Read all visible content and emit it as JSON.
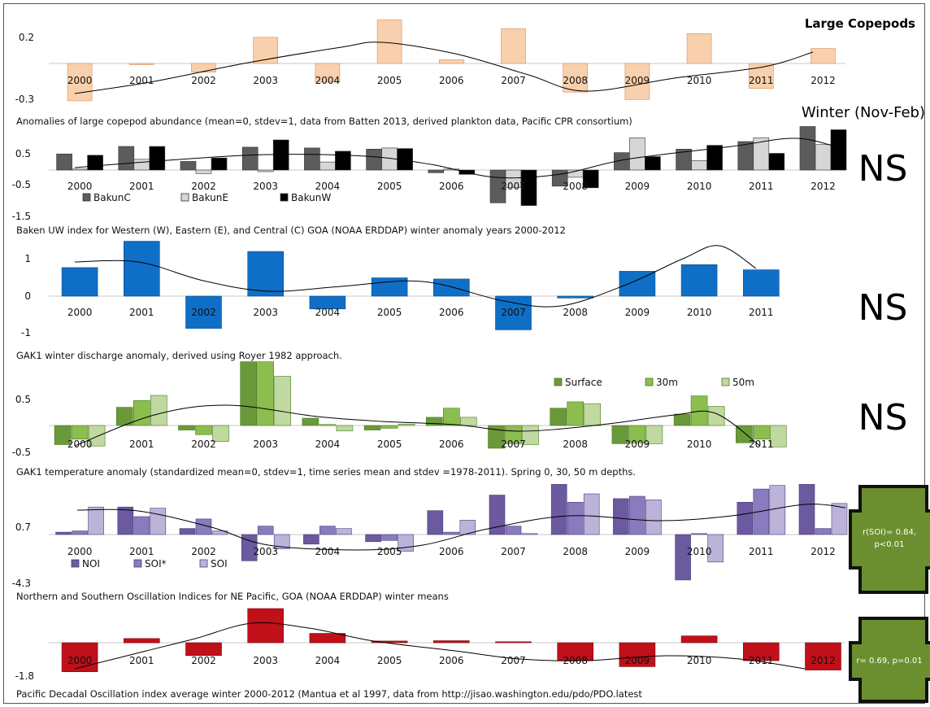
{
  "page": {
    "header_title": "Large Copepods",
    "season_label": "Winter (Nov-Feb)"
  },
  "panels": [
    {
      "id": "copepods",
      "caption": "Anomalies of large copepod abundance (mean=0, stdev=1, data from Batten 2013, derived plankton data, Pacific CPR consortium)",
      "ns": ""
    },
    {
      "id": "bakun",
      "caption": "Baken UW index for Western (W), Eastern (E), and Central (C) GOA (NOAA ERDDAP) winter anomaly years 2000-2012",
      "ns": "NS"
    },
    {
      "id": "discharge",
      "caption": "GAK1 winter discharge anomaly, derived using Royer 1982 approach.",
      "ns": "NS"
    },
    {
      "id": "temperature",
      "caption": "GAK1 temperature anomaly (standardized mean=0, stdev=1, time series mean and stdev =1978-2011).   Spring 0, 30, 50 m depths.",
      "ns": "NS"
    },
    {
      "id": "oscillation",
      "caption": "Northern and Southern Oscillation Indices for NE Pacific, GOA (NOAA ERDDAP) winter means",
      "ns": "",
      "stat": [
        "r(SOI)= 0.84,",
        "p<0.01"
      ]
    },
    {
      "id": "pdo",
      "caption": "Pacific Decadal Oscillation index average  winter 2000-2012 (Mantua et al 1997, data from http://jisao.washington.edu/pdo/PDO.latest",
      "ns": "",
      "stat": [
        "r= 0.69, p=0.01"
      ]
    }
  ],
  "colors": {
    "copepod_fill": "#f9d0ad",
    "copepod_stroke": "#d98c5a",
    "bakun_c": "#5c5c5c",
    "bakun_e": "#d6d6d6",
    "bakun_w": "#000000",
    "discharge": "#0f6fc6",
    "temp_surface": "#6a993a",
    "temp_30m": "#8cbd4f",
    "temp_50m": "#bfd9a0",
    "noi": "#6b5aa0",
    "soi_star": "#8a7bbf",
    "soi": "#bcb3d9",
    "pdo": "#c0101a",
    "stat_fill": "#6b8e2f",
    "curve": "#000000"
  },
  "chart_data": [
    {
      "type": "bar",
      "title": "Large Copepods",
      "categories": [
        "2000",
        "2001",
        "2002",
        "2003",
        "2004",
        "2005",
        "2006",
        "2007",
        "2008",
        "2009",
        "2010",
        "2011",
        "2012"
      ],
      "series": [
        {
          "values": [
            -0.3,
            -0.01,
            -0.07,
            0.21,
            -0.15,
            0.35,
            0.03,
            0.28,
            -0.23,
            -0.29,
            0.24,
            -0.2,
            0.12
          ]
        }
      ],
      "y_ticks": [
        0.2,
        -0.3
      ],
      "ylim": [
        -0.3,
        0.35
      ],
      "trend_curve": true,
      "significance": ""
    },
    {
      "type": "bar",
      "title": "Winter (Nov-Feb)",
      "categories": [
        "2000",
        "2001",
        "2002",
        "2003",
        "2004",
        "2005",
        "2006",
        "2007",
        "2008",
        "2009",
        "2010",
        "2011",
        "2012"
      ],
      "series": [
        {
          "name": "BakunC",
          "values": [
            0.6,
            0.88,
            0.32,
            0.85,
            0.82,
            0.78,
            -0.1,
            -1.22,
            -0.6,
            0.65,
            0.78,
            1.06,
            1.62
          ]
        },
        {
          "name": "BakunE",
          "values": [
            0.0,
            0.4,
            -0.13,
            -0.06,
            0.3,
            0.82,
            0.0,
            -0.65,
            -0.27,
            1.2,
            0.35,
            1.2,
            0.95
          ]
        },
        {
          "name": "BakunW",
          "values": [
            0.55,
            0.88,
            0.45,
            1.12,
            0.7,
            0.8,
            -0.16,
            -1.32,
            -0.66,
            0.5,
            0.92,
            0.62,
            1.5
          ]
        }
      ],
      "y_ticks": [
        0.5,
        -0.5,
        -1.5
      ],
      "ylim": [
        -1.5,
        1.6
      ],
      "trend_curve": true,
      "significance": "NS"
    },
    {
      "type": "bar",
      "categories": [
        "2000",
        "2001",
        "2002",
        "2003",
        "2004",
        "2005",
        "2006",
        "2007",
        "2008",
        "2009",
        "2010",
        "2011"
      ],
      "series": [
        {
          "values": [
            0.78,
            1.5,
            -0.88,
            1.22,
            -0.35,
            0.5,
            0.47,
            -0.92,
            -0.05,
            0.68,
            0.86,
            0.72
          ]
        }
      ],
      "y_ticks": [
        1,
        0,
        -1
      ],
      "ylim": [
        -1,
        1.5
      ],
      "trend_curve": true,
      "significance": "NS"
    },
    {
      "type": "bar",
      "categories": [
        "2000",
        "2001",
        "2002",
        "2003",
        "2004",
        "2005",
        "2006",
        "2007",
        "2008",
        "2009",
        "2010",
        "2011"
      ],
      "series": [
        {
          "name": "Surface",
          "values": [
            -0.42,
            0.4,
            -0.1,
            1.4,
            0.16,
            -0.1,
            0.18,
            -0.5,
            0.38,
            -0.4,
            0.25,
            -0.38
          ]
        },
        {
          "name": "30m",
          "values": [
            -0.3,
            0.55,
            -0.2,
            1.4,
            0.0,
            -0.06,
            0.38,
            -0.4,
            0.52,
            -0.38,
            0.65,
            -0.3
          ]
        },
        {
          "name": "50m",
          "values": [
            -0.45,
            0.66,
            -0.35,
            1.08,
            -0.12,
            0.03,
            0.18,
            -0.42,
            0.48,
            -0.4,
            0.42,
            -0.47
          ]
        }
      ],
      "y_ticks": [
        0.5,
        -0.5
      ],
      "ylim": [
        -0.5,
        1.4
      ],
      "legend": "top-right",
      "trend_curve": true,
      "significance": "NS"
    },
    {
      "type": "bar",
      "categories": [
        "2000",
        "2001",
        "2002",
        "2003",
        "2004",
        "2005",
        "2006",
        "2007",
        "2008",
        "2009",
        "2010",
        "2011",
        "2012"
      ],
      "series": [
        {
          "name": "NOI",
          "values": [
            0.2,
            2.3,
            0.5,
            -2.2,
            -0.8,
            -0.6,
            2.0,
            3.3,
            4.2,
            3.0,
            -3.8,
            2.7,
            4.2
          ]
        },
        {
          "name": "SOI*",
          "values": [
            0.3,
            1.5,
            1.3,
            0.7,
            0.7,
            -0.5,
            0.2,
            0.7,
            2.7,
            3.2,
            0.0,
            3.8,
            0.5
          ]
        },
        {
          "name": "SOI",
          "values": [
            2.3,
            2.2,
            0.3,
            -1.2,
            0.5,
            -1.4,
            1.2,
            0.0,
            3.4,
            2.9,
            -2.3,
            4.1,
            2.6
          ]
        }
      ],
      "y_ticks": [
        0.7,
        -4.3
      ],
      "ylim": [
        -4.3,
        4.5
      ],
      "legend": "bottom-left",
      "trend_curve": true,
      "significance": ""
    },
    {
      "type": "bar",
      "categories": [
        "2000",
        "2001",
        "2002",
        "2003",
        "2004",
        "2005",
        "2006",
        "2007",
        "2008",
        "2009",
        "2010",
        "2011",
        "2012"
      ],
      "series": [
        {
          "values": [
            -1.7,
            0.25,
            -0.75,
            2.0,
            0.55,
            0.1,
            0.12,
            0.0,
            -1.05,
            -1.4,
            0.4,
            -1.05,
            -1.6
          ]
        }
      ],
      "y_ticks": [
        -1.8
      ],
      "ylim": [
        -1.8,
        2.0
      ],
      "trend_curve": true,
      "significance": ""
    }
  ]
}
